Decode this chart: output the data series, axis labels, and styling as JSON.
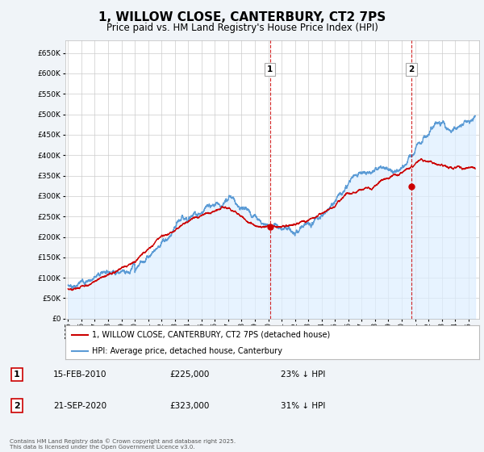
{
  "title": "1, WILLOW CLOSE, CANTERBURY, CT2 7PS",
  "subtitle": "Price paid vs. HM Land Registry's House Price Index (HPI)",
  "title_fontsize": 11,
  "subtitle_fontsize": 8.5,
  "ytick_values": [
    0,
    50000,
    100000,
    150000,
    200000,
    250000,
    300000,
    350000,
    400000,
    450000,
    500000,
    550000,
    600000,
    650000
  ],
  "ylim": [
    0,
    680000
  ],
  "xlim_start": 1994.8,
  "xlim_end": 2025.8,
  "xtick_years": [
    1995,
    1996,
    1997,
    1998,
    1999,
    2000,
    2001,
    2002,
    2003,
    2004,
    2005,
    2006,
    2007,
    2008,
    2009,
    2010,
    2011,
    2012,
    2013,
    2014,
    2015,
    2016,
    2017,
    2018,
    2019,
    2020,
    2021,
    2022,
    2023,
    2024,
    2025
  ],
  "legend_property_label": "1, WILLOW CLOSE, CANTERBURY, CT2 7PS (detached house)",
  "legend_hpi_label": "HPI: Average price, detached house, Canterbury",
  "property_color": "#cc0000",
  "hpi_color": "#5b9bd5",
  "hpi_fill_color": "#ddeeff",
  "sale1_date_x": 2010.12,
  "sale1_price": 225000,
  "sale2_date_x": 2020.72,
  "sale2_price": 323000,
  "annotation1_date": "15-FEB-2010",
  "annotation1_price": "£225,000",
  "annotation1_hpi": "23% ↓ HPI",
  "annotation2_date": "21-SEP-2020",
  "annotation2_price": "£323,000",
  "annotation2_hpi": "31% ↓ HPI",
  "footer": "Contains HM Land Registry data © Crown copyright and database right 2025.\nThis data is licensed under the Open Government Licence v3.0.",
  "background_color": "#f0f4f8",
  "plot_bg_color": "#ffffff",
  "grid_color": "#cccccc"
}
